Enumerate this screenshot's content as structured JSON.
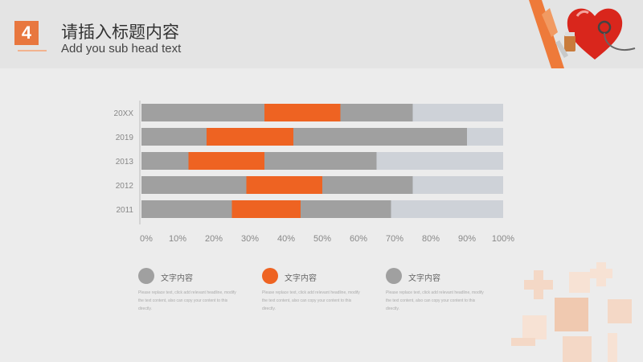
{
  "header": {
    "number": "4",
    "title": "请插入标题内容",
    "subtitle": "Add you sub head text"
  },
  "colors": {
    "gray": "#a0a0a0",
    "orange": "#ee6322",
    "track": "#ced2d8",
    "accent": "#e8773f"
  },
  "chart_data": {
    "type": "bar",
    "orientation": "horizontal",
    "stacked": true,
    "categories": [
      "20XX",
      "2019",
      "2013",
      "2012",
      "2011"
    ],
    "series": [
      {
        "values": [
          34,
          18,
          13,
          29,
          25
        ]
      },
      {
        "values": [
          21,
          24,
          21,
          21,
          19
        ]
      },
      {
        "values": [
          20,
          48,
          31,
          25,
          25
        ]
      },
      {
        "values": [
          25,
          10,
          35,
          25,
          31
        ]
      }
    ],
    "xlim": [
      0,
      100
    ],
    "xticks": [
      "0%",
      "10%",
      "20%",
      "30%",
      "40%",
      "50%",
      "60%",
      "70%",
      "80%",
      "90%",
      "100%"
    ],
    "grid": false
  },
  "legend": [
    {
      "label": "文字内容",
      "desc": "Please replace text, click add relevant headline, modify the text content, also can copy your content to this directly.",
      "color": "#a0a0a0"
    },
    {
      "label": "文字内容",
      "desc": "Please replace text, click add relevant headline, modify the text content, also can copy your content to this directly.",
      "color": "#ee6322"
    },
    {
      "label": "文字内容",
      "desc": "Please replace text, click add relevant headline, modify the text content, also can copy your content to this directly.",
      "color": "#a0a0a0"
    }
  ],
  "decoration": {
    "top_right": "heart-stethoscope-icon",
    "bottom_right": "medical-cross-pattern-icon"
  }
}
